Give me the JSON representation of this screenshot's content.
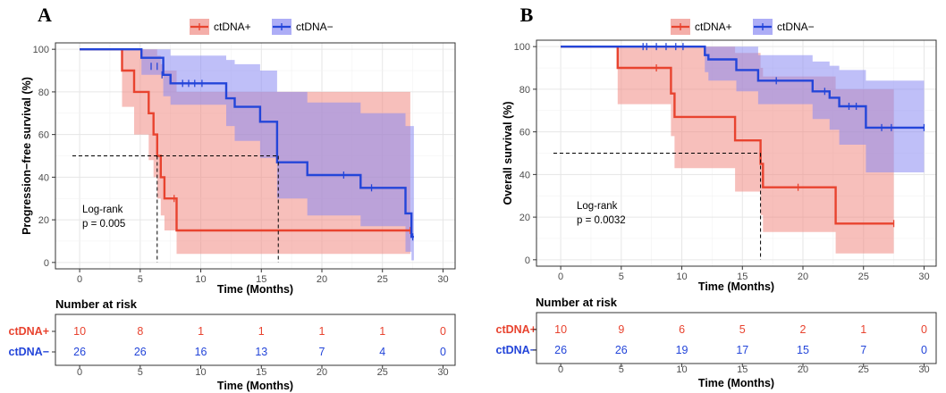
{
  "colors": {
    "pos": "#e8432f",
    "neg": "#2345d9",
    "pos_band": "#f08b84",
    "neg_band": "#8a8af2",
    "grid": "#e6e6e6"
  },
  "chart_data": [
    {
      "type": "line",
      "panel_label": "A",
      "legend": [
        "ctDNA+",
        "ctDNA−"
      ],
      "xlabel": "Time (Months)",
      "ylabel": "Progression−free survival (%)",
      "xlim": [
        -2,
        31
      ],
      "ylim": [
        -3,
        103
      ],
      "xticks": [
        0,
        5,
        10,
        15,
        20,
        25,
        30
      ],
      "yticks": [
        0,
        20,
        40,
        60,
        80,
        100
      ],
      "annotation": [
        "Log-rank",
        "p = 0.005"
      ],
      "median_lines": [
        6.4,
        16.4
      ],
      "series": [
        {
          "name": "ctDNA+",
          "key": "pos",
          "steps": [
            [
              0,
              100
            ],
            [
              3.5,
              90
            ],
            [
              4.5,
              80
            ],
            [
              5.7,
              70
            ],
            [
              6.1,
              60
            ],
            [
              6.4,
              50
            ],
            [
              6.7,
              40
            ],
            [
              7.0,
              30
            ],
            [
              8.0,
              15
            ],
            [
              27.3,
              15
            ]
          ],
          "censor": [
            [
              7.8,
              30
            ],
            [
              27.3,
              15
            ]
          ],
          "band": [
            [
              0,
              100,
              100
            ],
            [
              3.5,
              100,
              73
            ],
            [
              4.5,
              100,
              60
            ],
            [
              5.7,
              100,
              48
            ],
            [
              6.1,
              100,
              40
            ],
            [
              6.4,
              97,
              30
            ],
            [
              6.7,
              93,
              22
            ],
            [
              7.0,
              90,
              15
            ],
            [
              8.0,
              80,
              4
            ],
            [
              27.3,
              80,
              4
            ]
          ]
        },
        {
          "name": "ctDNA−",
          "key": "neg",
          "steps": [
            [
              0,
              100
            ],
            [
              5.1,
              96
            ],
            [
              6.9,
              88
            ],
            [
              7.5,
              84
            ],
            [
              12.1,
              77
            ],
            [
              12.8,
              73
            ],
            [
              14.9,
              66
            ],
            [
              16.3,
              47
            ],
            [
              18.8,
              41
            ],
            [
              23.2,
              35
            ],
            [
              26.9,
              23
            ],
            [
              27.4,
              12
            ],
            [
              27.6,
              12
            ]
          ],
          "censor": [
            [
              5.9,
              92
            ],
            [
              6.4,
              92
            ],
            [
              6.8,
              88
            ],
            [
              8.5,
              84
            ],
            [
              9.0,
              84
            ],
            [
              9.5,
              84
            ],
            [
              10.1,
              84
            ],
            [
              21.8,
              41
            ],
            [
              24.1,
              35
            ],
            [
              27.5,
              12
            ]
          ],
          "band": [
            [
              0,
              100,
              100
            ],
            [
              5.1,
              100,
              88
            ],
            [
              6.9,
              100,
              78
            ],
            [
              7.5,
              97,
              74
            ],
            [
              12.1,
              95,
              64
            ],
            [
              12.8,
              93,
              57
            ],
            [
              14.9,
              90,
              49
            ],
            [
              16.3,
              80,
              30
            ],
            [
              18.8,
              75,
              22
            ],
            [
              23.2,
              70,
              17
            ],
            [
              26.9,
              64,
              5
            ],
            [
              27.4,
              64,
              1
            ],
            [
              27.6,
              64,
              1
            ]
          ]
        }
      ],
      "risk_table": {
        "title": "Number at risk",
        "rows": [
          {
            "label": "ctDNA+",
            "key": "pos",
            "values": [
              10,
              8,
              1,
              1,
              1,
              1,
              0
            ]
          },
          {
            "label": "ctDNA−",
            "key": "neg",
            "values": [
              26,
              26,
              16,
              13,
              7,
              4,
              0
            ]
          }
        ],
        "xlabel": "Time (Months)"
      }
    },
    {
      "type": "line",
      "panel_label": "B",
      "legend": [
        "ctDNA+",
        "ctDNA−"
      ],
      "xlabel": "Time (Months)",
      "ylabel": "Overall survival (%)",
      "xlim": [
        -2,
        31
      ],
      "ylim": [
        -3,
        103
      ],
      "xticks": [
        0,
        5,
        10,
        15,
        20,
        25,
        30
      ],
      "yticks": [
        0,
        20,
        40,
        60,
        80,
        100
      ],
      "annotation": [
        "Log-rank",
        "p = 0.0032"
      ],
      "median_lines": [
        16.5
      ],
      "series": [
        {
          "name": "ctDNA+",
          "key": "pos",
          "steps": [
            [
              0,
              100
            ],
            [
              4.7,
              90
            ],
            [
              9.1,
              78
            ],
            [
              9.4,
              67
            ],
            [
              14.4,
              56
            ],
            [
              16.5,
              45
            ],
            [
              16.7,
              34
            ],
            [
              22.7,
              17
            ],
            [
              27.5,
              17
            ]
          ],
          "censor": [
            [
              7.9,
              90
            ],
            [
              19.6,
              34
            ],
            [
              27.5,
              17
            ]
          ],
          "band": [
            [
              0,
              100,
              100
            ],
            [
              4.7,
              100,
              73
            ],
            [
              9.1,
              100,
              58
            ],
            [
              9.4,
              100,
              43
            ],
            [
              14.4,
              97,
              32
            ],
            [
              16.5,
              90,
              21
            ],
            [
              16.7,
              86,
              13
            ],
            [
              22.7,
              80,
              3
            ],
            [
              27.5,
              80,
              3
            ]
          ]
        },
        {
          "name": "ctDNA−",
          "key": "neg",
          "steps": [
            [
              0,
              100
            ],
            [
              11.9,
              96
            ],
            [
              12.2,
              94
            ],
            [
              14.5,
              89
            ],
            [
              16.3,
              84
            ],
            [
              20.8,
              79
            ],
            [
              22.2,
              76
            ],
            [
              23.0,
              72
            ],
            [
              25.2,
              62
            ],
            [
              30.0,
              62
            ]
          ],
          "censor": [
            [
              6.8,
              100
            ],
            [
              7.1,
              100
            ],
            [
              7.9,
              100
            ],
            [
              8.7,
              100
            ],
            [
              9.5,
              100
            ],
            [
              10.1,
              100
            ],
            [
              17.8,
              84
            ],
            [
              21.8,
              79
            ],
            [
              23.8,
              72
            ],
            [
              24.4,
              72
            ],
            [
              26.5,
              62
            ],
            [
              27.3,
              62
            ],
            [
              30.0,
              62
            ]
          ],
          "band": [
            [
              0,
              100,
              100
            ],
            [
              11.9,
              100,
              88
            ],
            [
              12.2,
              100,
              84
            ],
            [
              14.5,
              100,
              79
            ],
            [
              16.3,
              96,
              73
            ],
            [
              20.8,
              93,
              66
            ],
            [
              22.2,
              91,
              61
            ],
            [
              23.0,
              89,
              54
            ],
            [
              25.2,
              84,
              41
            ],
            [
              30.0,
              84,
              41
            ]
          ]
        }
      ],
      "risk_table": {
        "title": "Number at risk",
        "rows": [
          {
            "label": "ctDNA+",
            "key": "pos",
            "values": [
              10,
              9,
              6,
              5,
              2,
              1,
              0
            ]
          },
          {
            "label": "ctDNA−",
            "key": "neg",
            "values": [
              26,
              26,
              19,
              17,
              15,
              7,
              0
            ]
          }
        ],
        "xlabel": "Time (Months)"
      }
    }
  ]
}
